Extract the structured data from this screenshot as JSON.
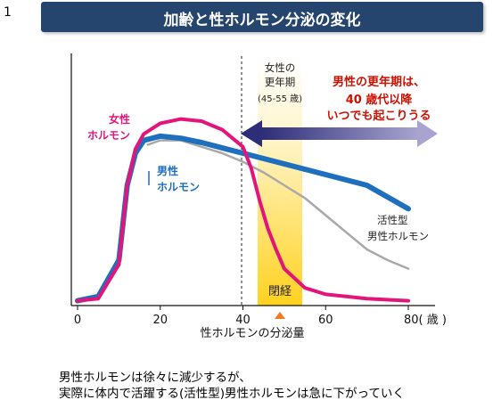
{
  "page": {
    "number": "1"
  },
  "title": "加齢と性ホルモン分泌の変化",
  "caption": {
    "line1": "男性ホルモンは徐々に減少するが、",
    "line2": "実際に体内で活躍する(活性型)男性ホルモンは急に下がっていく"
  },
  "colors": {
    "title_bar": "#26456e",
    "female": "#e3157b",
    "male": "#1e6fbe",
    "active_male": "#a9a9a9",
    "arrow": "#2d2d78",
    "arrow_fade": "#a8a4d0",
    "menopause_band": "#ffd21f",
    "annotation_red": "#cc1100",
    "marker": "#f07a20"
  },
  "chart_data": {
    "type": "line",
    "x_tick_labels": [
      "0",
      "20",
      "40",
      "60",
      "80( 歳 )"
    ],
    "x_ticks": [
      0,
      20,
      40,
      60,
      80
    ],
    "xlim": [
      0,
      80
    ],
    "ylim": [
      0,
      100
    ],
    "xlabel": "性ホルモンの分泌量",
    "ylabel": "",
    "grid": false,
    "legend": "inline labels",
    "series": [
      {
        "name": "女性ホルモン",
        "label_lines": [
          "女性",
          "ホルモン"
        ],
        "color_key": "female",
        "x": [
          0,
          5,
          10,
          12,
          14,
          16,
          20,
          25,
          30,
          35,
          40,
          42,
          44,
          46,
          48,
          50,
          55,
          60,
          70,
          80
        ],
        "y": [
          1,
          2,
          18,
          55,
          72,
          79,
          84,
          86,
          85,
          81,
          73,
          63,
          48,
          35,
          25,
          16,
          7,
          4,
          2,
          1
        ]
      },
      {
        "name": "男性ホルモン",
        "label_lines": [
          "男性",
          "ホルモン"
        ],
        "color_key": "male",
        "x": [
          0,
          5,
          10,
          12,
          14,
          16,
          20,
          25,
          30,
          40,
          50,
          60,
          70,
          80
        ],
        "y": [
          1,
          3,
          20,
          55,
          70,
          76,
          78,
          77,
          75,
          70,
          65,
          60,
          55,
          44
        ]
      },
      {
        "name": "活性型男性ホルモン",
        "label_lines": [
          "活性型",
          "男性ホルモン"
        ],
        "color_key": "active_male",
        "x": [
          17,
          20,
          25,
          30,
          35,
          40,
          45,
          50,
          55,
          60,
          65,
          70,
          75,
          80
        ],
        "y": [
          74,
          76,
          76,
          73,
          70,
          66,
          61,
          55,
          49,
          41,
          33,
          25,
          20,
          16
        ]
      }
    ],
    "reference_line": {
      "x": 40,
      "style": "dashed"
    },
    "band": {
      "x": [
        44,
        55
      ],
      "label_lines": [
        "女性の",
        "更年期",
        "(45-55 歳)"
      ],
      "inner_label": "閉経"
    },
    "marker": {
      "x": 50
    },
    "arrow": {
      "from": 80,
      "to": 40,
      "y": 68,
      "direction": "both"
    },
    "annotation_lines": [
      "男性の更年期は、",
      "40 歳代以降",
      "いつでも起こりうる"
    ]
  }
}
